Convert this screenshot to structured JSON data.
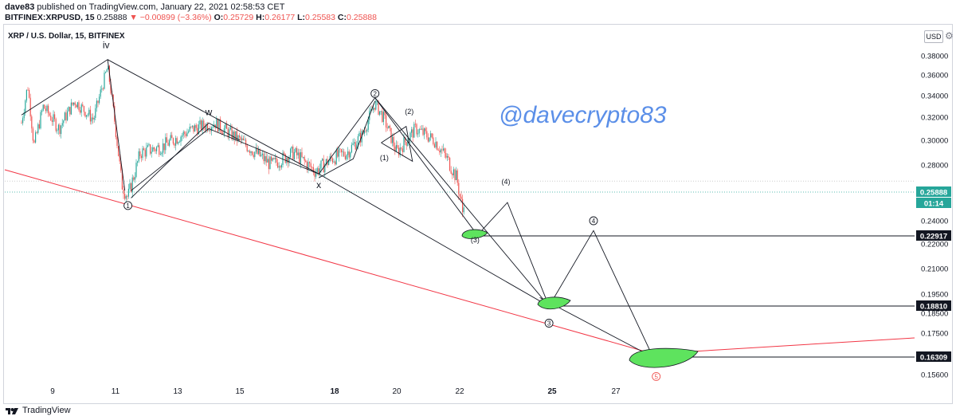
{
  "header": {
    "author": "dave83",
    "published_text": " published on TradingView.com, January 22, 2021 02:58:53 CET",
    "symbol": "BITFINEX:XRPUSD, 15",
    "last": "0.25888",
    "change": "▼ −0.00899 (−3.36%)",
    "o_label": "O:",
    "o_value": "0.25729",
    "h_label": "H:",
    "h_value": "0.26177",
    "l_label": "L:",
    "l_value": "0.25583",
    "c_label": "C:",
    "c_value": "0.25888"
  },
  "legend": "XRP / U.S. Dollar, 15, BITFINEX",
  "currency_button": "USD",
  "watermark": "@davecrypto83",
  "footer": {
    "brand": "TradingView"
  },
  "colors": {
    "up": "#26a69a",
    "down": "#ef5350",
    "trendline": "#f23645",
    "drawing": "#131722",
    "target_fill": "#5ee35e",
    "watermark": "#5b8fe8",
    "last_price": "#26a69a"
  },
  "chart_data": {
    "type": "candlestick",
    "x_tick_labels": [
      "9",
      "11",
      "13",
      "15",
      "18",
      "20",
      "22",
      "25",
      "27"
    ],
    "y_tick_labels": [
      "0.38000",
      "0.36000",
      "0.34000",
      "0.32000",
      "0.30000",
      "0.28000",
      "0.24000",
      "0.22000",
      "0.21000",
      "0.19500",
      "0.18500",
      "0.17500",
      "0.15600"
    ],
    "y_ticks": [
      0.38,
      0.36,
      0.34,
      0.32,
      0.3,
      0.28,
      0.24,
      0.22,
      0.21,
      0.195,
      0.185,
      0.175,
      0.156
    ],
    "price_labels": [
      {
        "label": "0.25888",
        "value": 0.25888,
        "kind": "last"
      },
      {
        "label": "01:14",
        "value": 0.25888,
        "kind": "countdown"
      },
      {
        "label": "0.22917",
        "value": 0.22917,
        "kind": "target"
      },
      {
        "label": "0.18810",
        "value": 0.1881,
        "kind": "target"
      },
      {
        "label": "0.16309",
        "value": 0.16309,
        "kind": "target"
      }
    ],
    "price_path": [
      {
        "d": 8.0,
        "p": 0.315
      },
      {
        "d": 8.2,
        "p": 0.35
      },
      {
        "d": 8.4,
        "p": 0.295
      },
      {
        "d": 8.7,
        "p": 0.33
      },
      {
        "d": 9.2,
        "p": 0.31
      },
      {
        "d": 9.7,
        "p": 0.335
      },
      {
        "d": 10.3,
        "p": 0.318
      },
      {
        "d": 10.75,
        "p": 0.368
      },
      {
        "d": 11.0,
        "p": 0.31
      },
      {
        "d": 11.2,
        "p": 0.265
      },
      {
        "d": 11.4,
        "p": 0.255
      },
      {
        "d": 11.8,
        "p": 0.29
      },
      {
        "d": 12.5,
        "p": 0.295
      },
      {
        "d": 13.5,
        "p": 0.31
      },
      {
        "d": 14.2,
        "p": 0.315
      },
      {
        "d": 15.0,
        "p": 0.3
      },
      {
        "d": 15.5,
        "p": 0.29
      },
      {
        "d": 16.0,
        "p": 0.28
      },
      {
        "d": 16.7,
        "p": 0.29
      },
      {
        "d": 17.4,
        "p": 0.275
      },
      {
        "d": 17.9,
        "p": 0.285
      },
      {
        "d": 18.4,
        "p": 0.29
      },
      {
        "d": 18.9,
        "p": 0.305
      },
      {
        "d": 19.3,
        "p": 0.333
      },
      {
        "d": 19.6,
        "p": 0.318
      },
      {
        "d": 20.0,
        "p": 0.29
      },
      {
        "d": 20.6,
        "p": 0.31
      },
      {
        "d": 21.2,
        "p": 0.3
      },
      {
        "d": 21.6,
        "p": 0.285
      },
      {
        "d": 21.9,
        "p": 0.27
      },
      {
        "d": 22.1,
        "p": 0.245
      },
      {
        "d": 22.15,
        "p": 0.25888
      }
    ],
    "wave_labels": [
      {
        "label": "iv",
        "d": 10.7,
        "p": 0.388
      },
      {
        "label": "w",
        "d": 14.0,
        "p": 0.322
      },
      {
        "label": "x",
        "d": 17.5,
        "p": 0.262
      },
      {
        "label": "(1)",
        "d": 19.6,
        "p": 0.284
      },
      {
        "label": "(2)",
        "d": 20.4,
        "p": 0.323
      },
      {
        "label": "(3)",
        "d": 22.5,
        "p": 0.222
      },
      {
        "label": "(4)",
        "d": 23.5,
        "p": 0.265
      }
    ],
    "circled_labels": [
      {
        "label": "1",
        "d": 11.4,
        "p": 0.25,
        "color": "#131722"
      },
      {
        "label": "2",
        "d": 19.3,
        "p": 0.342,
        "color": "#131722"
      },
      {
        "label": "3",
        "d": 24.9,
        "p": 0.18,
        "color": "#131722"
      },
      {
        "label": "4",
        "d": 26.3,
        "p": 0.24,
        "color": "#131722"
      },
      {
        "label": "5",
        "d": 28.3,
        "p": 0.155,
        "color": "#ef5350"
      }
    ],
    "annotations": "Elliott wave count drawing: trendlines, projected wave paths to targets 0.22917, 0.18810 and 0.16309"
  }
}
